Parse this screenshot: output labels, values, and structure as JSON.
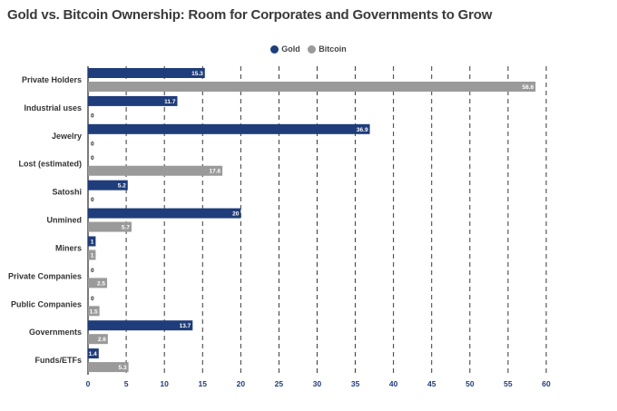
{
  "title": "Gold vs. Bitcoin Ownership: Room for Corporates and Governments to Grow",
  "colors": {
    "gold": "#1f3d7a",
    "bitcoin": "#9a9a9a",
    "grid": "#222222",
    "axis_text": "#1f3d7a",
    "category_text": "#333333"
  },
  "chart_data": {
    "type": "bar",
    "orientation": "horizontal",
    "title": "Gold vs. Bitcoin Ownership: Room for Corporates and Governments to Grow",
    "categories": [
      "Private Holders",
      "Industrial uses",
      "Jewelry",
      "Lost (estimated)",
      "Satoshi",
      "Unmined",
      "Miners",
      "Private Companies",
      "Public Companies",
      "Governments",
      "Funds/ETFs"
    ],
    "series": [
      {
        "name": "Gold",
        "values": [
          15.3,
          11.7,
          36.9,
          0,
          5.2,
          20,
          1,
          0,
          0,
          13.7,
          1.4
        ],
        "labels": [
          "15.3",
          "11.7",
          "36.9",
          "0",
          "5.2",
          "20",
          "1",
          "0",
          "0",
          "13.7",
          "1.4"
        ]
      },
      {
        "name": "Bitcoin",
        "values": [
          58.6,
          0,
          0,
          17.6,
          0,
          5.7,
          1,
          2.5,
          1.5,
          2.6,
          5.3
        ],
        "labels": [
          "58.6",
          "0",
          "0",
          "17.6",
          "0",
          "5.7",
          "1",
          "2.5",
          "1.5",
          "2.6",
          "5.3"
        ]
      }
    ],
    "xlim": [
      0,
      60
    ],
    "xticks": [
      "0",
      "5",
      "10",
      "15",
      "20",
      "25",
      "30",
      "35",
      "40",
      "45",
      "50",
      "55",
      "60"
    ],
    "grid": "vertical dashed",
    "legend": "top-center"
  }
}
